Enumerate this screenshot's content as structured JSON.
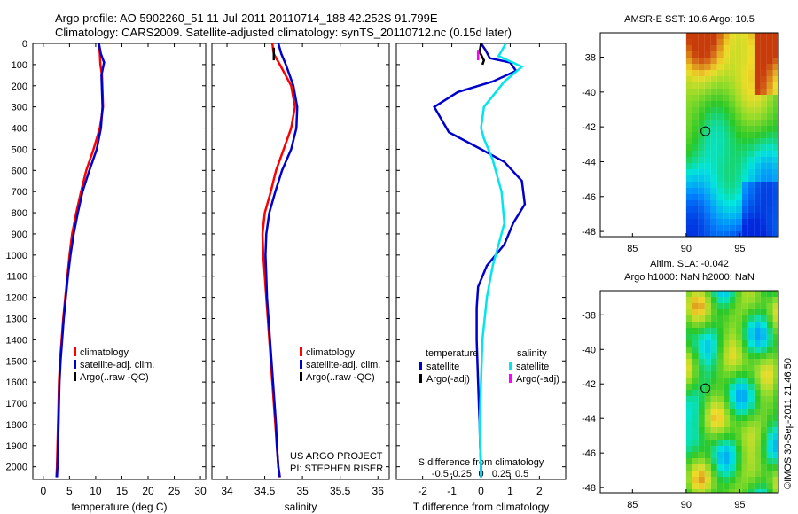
{
  "header": {
    "line1": "Argo profile: AO 5902260_51 11-Jul-2011 20110714_188 42.252S 91.799E",
    "line2": "Climatology: CARS2009. Satellite-adjusted climatology: synTS_20110712.nc (0.15d later)"
  },
  "watermark": "©IMOS 30-Sep-2011 21:46:50",
  "colors": {
    "climatology": "#ff0000",
    "satellite": "#0000cc",
    "argo": "#000000",
    "sal_sat": "#00e5ee",
    "sal_argo": "#ff00ff"
  },
  "chart_data": [
    {
      "type": "line",
      "id": "temperature",
      "xlabel": "temperature (deg C)",
      "ylabel": "",
      "xlim": [
        -2,
        31
      ],
      "ylim": [
        2060,
        0
      ],
      "xticks": [
        "0",
        "5",
        "10",
        "15",
        "20",
        "25",
        "30"
      ],
      "xtick_vals": [
        0,
        5,
        10,
        15,
        20,
        25,
        30
      ],
      "yticks": [
        "0",
        "100",
        "200",
        "300",
        "400",
        "500",
        "600",
        "700",
        "800",
        "900",
        "1000",
        "1100",
        "1200",
        "1300",
        "1400",
        "1500",
        "1600",
        "1700",
        "1800",
        "1900",
        "2000"
      ],
      "ytick_vals": [
        0,
        100,
        200,
        300,
        400,
        500,
        600,
        700,
        800,
        900,
        1000,
        1100,
        1200,
        1300,
        1400,
        1500,
        1600,
        1700,
        1800,
        1900,
        2000
      ],
      "legend": [
        "climatology",
        "satellite-adj. clim.",
        "Argo(..raw -QC)"
      ],
      "series": [
        {
          "name": "climatology",
          "color": "#ff0000",
          "x": [
            10.6,
            10.8,
            10.9,
            11.2,
            11.4,
            10.8,
            9.6,
            8.2,
            7.2,
            6.3,
            5.5,
            5.0,
            4.6,
            4.2,
            3.8,
            3.5,
            3.2,
            3.0,
            2.9,
            2.8,
            2.7,
            2.6,
            2.5
          ],
          "y": [
            0,
            50,
            100,
            150,
            300,
            400,
            500,
            600,
            700,
            800,
            900,
            1000,
            1100,
            1200,
            1300,
            1400,
            1500,
            1600,
            1700,
            1800,
            1900,
            2000,
            2050
          ]
        },
        {
          "name": "satellite",
          "color": "#0000cc",
          "x": [
            10.6,
            11.0,
            11.6,
            11.1,
            11.3,
            11.0,
            10.2,
            8.8,
            7.5,
            6.6,
            5.8,
            5.2,
            4.7,
            4.3,
            3.9,
            3.6,
            3.3,
            3.1,
            3.0,
            2.9,
            2.8,
            2.7,
            2.6
          ],
          "y": [
            0,
            50,
            90,
            150,
            300,
            400,
            500,
            600,
            700,
            800,
            900,
            1000,
            1100,
            1200,
            1300,
            1400,
            1500,
            1600,
            1700,
            1800,
            1900,
            2000,
            2050
          ]
        }
      ]
    },
    {
      "type": "line",
      "id": "salinity",
      "xlabel": "salinity",
      "xlim": [
        33.8,
        36.15
      ],
      "ylim": [
        2060,
        0
      ],
      "xticks": [
        "34",
        "34.5",
        "35",
        "35.5",
        "36"
      ],
      "xtick_vals": [
        34,
        34.5,
        35,
        35.5,
        36
      ],
      "legend": [
        "climatology",
        "satellite-adj. clim.",
        "Argo(..raw -QC)"
      ],
      "annotation": [
        "US ARGO PROJECT",
        "PI: STEPHEN RISER"
      ],
      "series": [
        {
          "name": "climatology",
          "color": "#ff0000",
          "x": [
            34.6,
            34.62,
            34.7,
            34.85,
            34.9,
            34.85,
            34.75,
            34.65,
            34.58,
            34.5,
            34.47,
            34.48,
            34.5,
            34.52,
            34.54,
            34.56,
            34.58,
            34.6,
            34.62,
            34.64,
            34.66,
            34.68,
            34.7
          ],
          "y": [
            0,
            50,
            100,
            200,
            300,
            400,
            500,
            600,
            700,
            800,
            900,
            1000,
            1100,
            1200,
            1300,
            1400,
            1500,
            1600,
            1700,
            1800,
            1900,
            2000,
            2050
          ]
        },
        {
          "name": "satellite",
          "color": "#0000cc",
          "x": [
            34.68,
            34.72,
            34.78,
            34.88,
            34.93,
            34.92,
            34.85,
            34.73,
            34.64,
            34.56,
            34.52,
            34.51,
            34.52,
            34.53,
            34.55,
            34.57,
            34.59,
            34.61,
            34.63,
            34.65,
            34.66,
            34.68,
            34.7
          ],
          "y": [
            0,
            50,
            100,
            200,
            300,
            400,
            500,
            600,
            700,
            800,
            900,
            1000,
            1100,
            1200,
            1300,
            1400,
            1500,
            1600,
            1700,
            1800,
            1900,
            2000,
            2050
          ]
        },
        {
          "name": "argo",
          "color": "#000000",
          "x": [
            34.62,
            34.62
          ],
          "y": [
            20,
            80
          ]
        }
      ]
    },
    {
      "type": "line",
      "id": "difference",
      "xlabel": "T difference from climatology",
      "x2label": "S difference from climatology",
      "xlim": [
        -2.9,
        2.9
      ],
      "ylim": [
        2060,
        0
      ],
      "xticks": [
        "-2",
        "-1",
        "0",
        "1",
        "2"
      ],
      "xtick_vals": [
        -2,
        -1,
        0,
        1,
        2
      ],
      "x2ticks": [
        "-0.5",
        "-0.25",
        "0",
        "0.25",
        "0.5"
      ],
      "x2tick_vals": [
        -1.4,
        -0.7,
        0,
        0.7,
        1.4
      ],
      "legend_left": {
        "title": "temperature",
        "items": [
          "satellite",
          "Argo(-adj)"
        ]
      },
      "legend_right": {
        "title": "salinity",
        "items": [
          "satellite",
          "Argo(-adj)"
        ]
      },
      "series": [
        {
          "name": "T satellite",
          "color": "#0000cc",
          "x": [
            0.0,
            0.15,
            0.3,
            1.0,
            1.2,
            0.4,
            -0.8,
            -1.6,
            -1.1,
            0.0,
            0.8,
            1.4,
            1.5,
            1.1,
            0.8,
            0.2,
            -0.1,
            -0.15,
            -0.15,
            -0.1,
            -0.05,
            -0.03,
            0.0,
            0.0
          ],
          "y": [
            0,
            30,
            70,
            90,
            130,
            180,
            230,
            300,
            420,
            500,
            560,
            650,
            760,
            850,
            950,
            1050,
            1150,
            1250,
            1400,
            1600,
            1800,
            1900,
            2000,
            2050
          ]
        },
        {
          "name": "T argo",
          "color": "#000000",
          "x": [
            0.0,
            -0.05,
            0.1,
            0.05
          ],
          "y": [
            0,
            40,
            80,
            100
          ]
        },
        {
          "name": "S satellite",
          "color": "#00e5ee",
          "x": [
            0.85,
            0.6,
            1.4,
            0.8,
            0.1,
            0.0,
            0.1,
            0.4,
            0.7,
            0.8,
            0.6,
            0.4,
            0.2,
            0.05,
            0.0,
            -0.05,
            -0.03,
            0.0,
            0.0
          ],
          "y": [
            0,
            60,
            110,
            180,
            300,
            400,
            450,
            550,
            700,
            850,
            950,
            1050,
            1200,
            1400,
            1600,
            1800,
            1900,
            2000,
            2050
          ]
        },
        {
          "name": "S argo",
          "color": "#ff00ff",
          "x": [
            -0.1,
            -0.1
          ],
          "y": [
            30,
            80
          ]
        }
      ]
    },
    {
      "type": "heatmap",
      "id": "sst_map",
      "title": "AMSR-E SST: 10.6 Argo: 10.5",
      "xticks": [
        "85",
        "90",
        "95"
      ],
      "xtick_vals": [
        85,
        90,
        95
      ],
      "yticks": [
        "-38",
        "-40",
        "-42",
        "-44",
        "-46",
        "-48"
      ],
      "ytick_vals": [
        -38,
        -40,
        -42,
        -44,
        -46,
        -48
      ],
      "xlim": [
        82,
        98.6
      ],
      "ylim": [
        -48.3,
        -36.6
      ],
      "marker": {
        "lon": 91.8,
        "lat": -42.25
      }
    },
    {
      "type": "heatmap",
      "id": "sla_map",
      "title": "Altim. SLA: -0.042",
      "subtitle": "Argo h1000: NaN h2000: NaN",
      "xticks": [
        "85",
        "90",
        "95"
      ],
      "xtick_vals": [
        85,
        90,
        95
      ],
      "yticks": [
        "-38",
        "-40",
        "-42",
        "-44",
        "-46",
        "-48"
      ],
      "ytick_vals": [
        -38,
        -40,
        -42,
        -44,
        -46,
        -48
      ],
      "xlim": [
        82,
        98.6
      ],
      "ylim": [
        -48.3,
        -36.6
      ],
      "marker": {
        "lon": 91.8,
        "lat": -42.25
      }
    }
  ]
}
